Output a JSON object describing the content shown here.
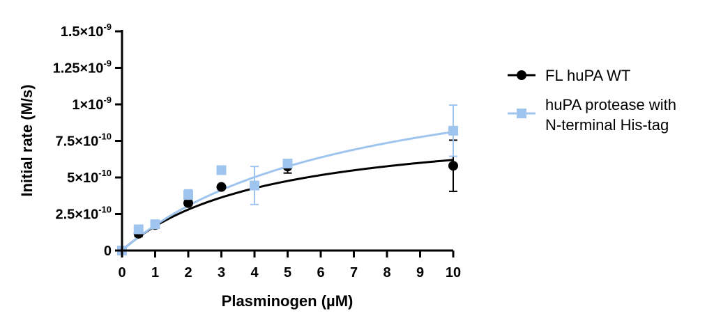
{
  "chart_data": {
    "type": "scatter",
    "xlabel": "Plasminogen (µM)",
    "ylabel": "Initial rate (M/s)",
    "xlim": [
      0,
      10
    ],
    "ylim": [
      0,
      1.5e-09
    ],
    "x_ticks": [
      {
        "value": 0,
        "label": "0"
      },
      {
        "value": 1,
        "label": "1"
      },
      {
        "value": 2,
        "label": "2"
      },
      {
        "value": 3,
        "label": "3"
      },
      {
        "value": 4,
        "label": "4"
      },
      {
        "value": 5,
        "label": "5"
      },
      {
        "value": 6,
        "label": "6"
      },
      {
        "value": 7,
        "label": "7"
      },
      {
        "value": 8,
        "label": "8"
      },
      {
        "value": 9,
        "label": "9"
      },
      {
        "value": 10,
        "label": "10"
      }
    ],
    "y_ticks": [
      {
        "value": 0,
        "mantissa": "0",
        "exp": ""
      },
      {
        "value": 2.5e-10,
        "mantissa": "2.5×10",
        "exp": "-10"
      },
      {
        "value": 5e-10,
        "mantissa": "5×10",
        "exp": "-10"
      },
      {
        "value": 7.5e-10,
        "mantissa": "7.5×10",
        "exp": "-10"
      },
      {
        "value": 1e-09,
        "mantissa": "1×10",
        "exp": "-9"
      },
      {
        "value": 1.25e-09,
        "mantissa": "1.25×10",
        "exp": "-9"
      },
      {
        "value": 1.5e-09,
        "mantissa": "1.5×10",
        "exp": "-9"
      }
    ],
    "grid": false,
    "legend_position": "right",
    "series": [
      {
        "name": "FL huPA WT",
        "marker": "circle",
        "color": "#000000",
        "points": [
          {
            "x": 0,
            "y": 0,
            "err": 0
          },
          {
            "x": 0.5,
            "y": 1.15e-10,
            "err": 2e-11
          },
          {
            "x": 1,
            "y": 1.75e-10,
            "err": 1.5e-11
          },
          {
            "x": 2,
            "y": 3.25e-10,
            "err": 1.5e-11
          },
          {
            "x": 3,
            "y": 4.35e-10,
            "err": 1e-11
          },
          {
            "x": 4,
            "y": 4.45e-10,
            "err": 1.5e-11
          },
          {
            "x": 5,
            "y": 5.75e-10,
            "err": 4.5e-11
          },
          {
            "x": 10,
            "y": 5.8e-10,
            "err": 1.75e-10
          }
        ],
        "fit": {
          "vmax": 8.9e-10,
          "km": 4.35
        }
      },
      {
        "name": "huPA protease with N-terminal His-tag",
        "legend_lines": [
          "huPA protease with",
          "N-terminal His-tag"
        ],
        "marker": "square",
        "color": "#9fc5ef",
        "points": [
          {
            "x": 0,
            "y": 0,
            "err": 0
          },
          {
            "x": 0.5,
            "y": 1.45e-10,
            "err": 1e-11
          },
          {
            "x": 1,
            "y": 1.8e-10,
            "err": 1e-11
          },
          {
            "x": 2,
            "y": 3.8e-10,
            "err": 3.5e-11
          },
          {
            "x": 3,
            "y": 5.5e-10,
            "err": 1e-11
          },
          {
            "x": 4,
            "y": 4.45e-10,
            "err": 1.3e-10
          },
          {
            "x": 5,
            "y": 5.95e-10,
            "err": 2.5e-11
          },
          {
            "x": 10,
            "y": 8.2e-10,
            "err": 1.75e-10
          }
        ],
        "fit": {
          "vmax": 1.38e-09,
          "km": 7.0
        }
      }
    ]
  }
}
